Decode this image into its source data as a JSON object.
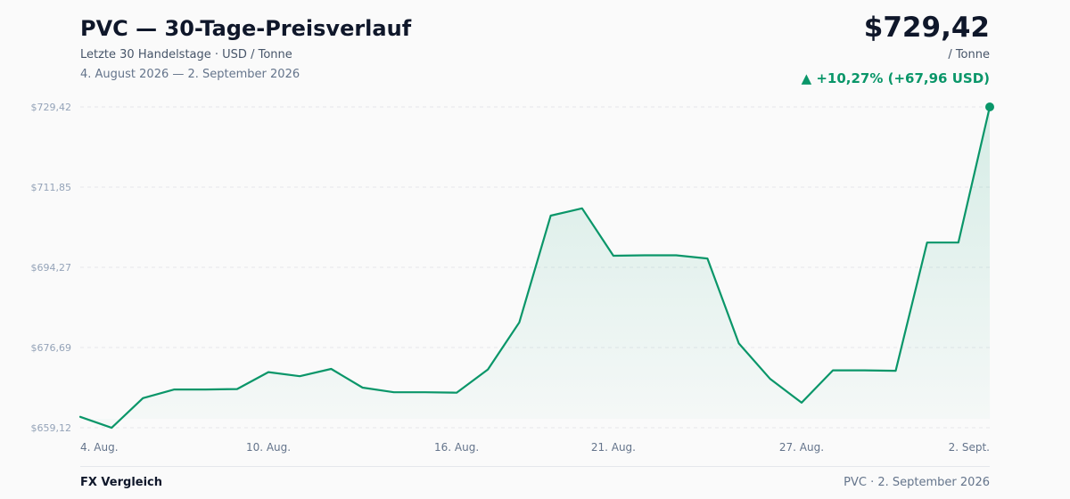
{
  "header": {
    "title": "PVC — 30-Tage-Preisverlauf",
    "subtitle": "Letzte 30 Handelstage · USD / Tonne",
    "date_range": "4. August 2026 — 2. September 2026",
    "price": "$729,42",
    "unit": "/ Tonne",
    "change": "▲ +10,27% (+67,96 USD)"
  },
  "footer": {
    "brand": "FX Vergleich",
    "caption": "PVC · 2. September 2026"
  },
  "colors": {
    "line": "#0a9669",
    "fill": "#16a37a",
    "grid": "#e5e7eb"
  },
  "chart_data": {
    "type": "area",
    "x": [
      "4. Aug.",
      "5. Aug.",
      "6. Aug.",
      "7. Aug.",
      "8. Aug.",
      "9. Aug.",
      "10. Aug.",
      "11. Aug.",
      "12. Aug.",
      "13. Aug.",
      "14. Aug.",
      "15. Aug.",
      "16. Aug.",
      "17. Aug.",
      "18. Aug.",
      "19. Aug.",
      "20. Aug.",
      "21. Aug.",
      "22. Aug.",
      "23. Aug.",
      "24. Aug.",
      "25. Aug.",
      "26. Aug.",
      "27. Aug.",
      "28. Aug.",
      "29. Aug.",
      "30. Aug.",
      "31. Aug.",
      "1. Sept.",
      "2. Sept."
    ],
    "series": [
      {
        "values": [
          661.5,
          659.1,
          665.6,
          667.5,
          667.5,
          667.6,
          671.3,
          670.4,
          672.0,
          667.9,
          666.9,
          666.9,
          666.8,
          671.9,
          682.2,
          705.6,
          707.2,
          696.8,
          696.9,
          696.9,
          696.2,
          677.6,
          669.8,
          664.6,
          671.7,
          671.7,
          671.6,
          699.7,
          699.7,
          729.42
        ]
      }
    ],
    "yticks": [
      "$659,12",
      "$676,69",
      "$694,27",
      "$711,85",
      "$729,42"
    ],
    "ytick_values": [
      659.12,
      676.69,
      694.27,
      711.85,
      729.42
    ],
    "xtick_labels": [
      "4. Aug.",
      "10. Aug.",
      "16. Aug.",
      "21. Aug.",
      "27. Aug.",
      "2. Sept."
    ],
    "xtick_indices": [
      0,
      6,
      12,
      17,
      23,
      29
    ],
    "ylim": [
      659.12,
      729.42
    ],
    "grid": true,
    "legend": "none",
    "title": "PVC — 30-Tage-Preisverlauf",
    "xlabel": "",
    "ylabel": ""
  }
}
